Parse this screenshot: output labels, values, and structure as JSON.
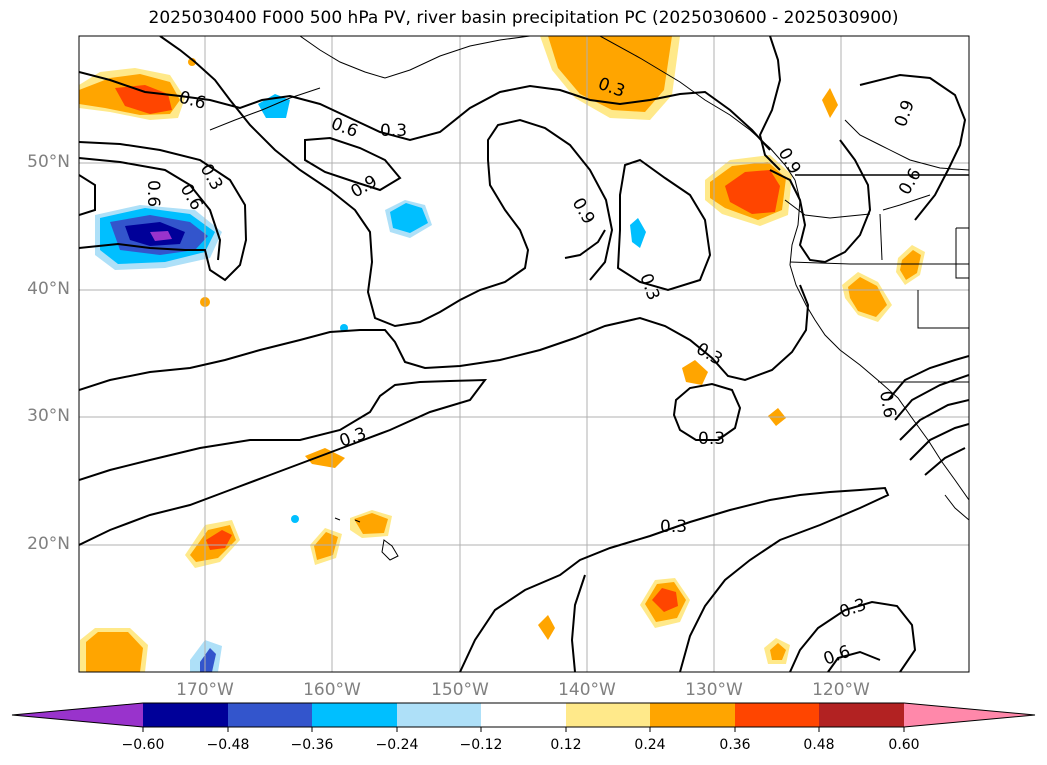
{
  "title": "2025030400 F000 500 hPa PV, river basin precipitation PC (2025030600 - 2025030900)",
  "lat_labels": [
    "50°N",
    "40°N",
    "30°N",
    "20°N"
  ],
  "lon_labels": [
    "170°W",
    "160°W",
    "150°W",
    "140°W",
    "130°W",
    "120°W"
  ],
  "colorbar": {
    "ticks": [
      "−0.60",
      "−0.48",
      "−0.36",
      "−0.24",
      "−0.12",
      "0.12",
      "0.24",
      "0.36",
      "0.48",
      "0.60"
    ],
    "colors": [
      "#9933cc",
      "#000099",
      "#3355cc",
      "#00bfff",
      "#aee0f8",
      "#ffffff",
      "#ffe98a",
      "#ffa500",
      "#ff4500",
      "#b22222",
      "#ff88aa"
    ]
  },
  "contour_labels": [
    {
      "text": "0.6"
    },
    {
      "text": "0.6"
    },
    {
      "text": "0.3"
    },
    {
      "text": "0.6"
    },
    {
      "text": "0.6"
    },
    {
      "text": "0.9"
    },
    {
      "text": "0.3"
    },
    {
      "text": "0.3"
    },
    {
      "text": "0.9"
    },
    {
      "text": "0.3"
    },
    {
      "text": "0.9"
    },
    {
      "text": "0.3"
    },
    {
      "text": "0.9"
    },
    {
      "text": "0.6"
    },
    {
      "text": "0.3"
    },
    {
      "text": "0.3"
    },
    {
      "text": "0.3"
    },
    {
      "text": "0.3"
    },
    {
      "text": "0.6"
    },
    {
      "text": "0.6"
    }
  ],
  "map_extent": {
    "lon": [
      -180,
      -110
    ],
    "lat": [
      10,
      60
    ]
  }
}
